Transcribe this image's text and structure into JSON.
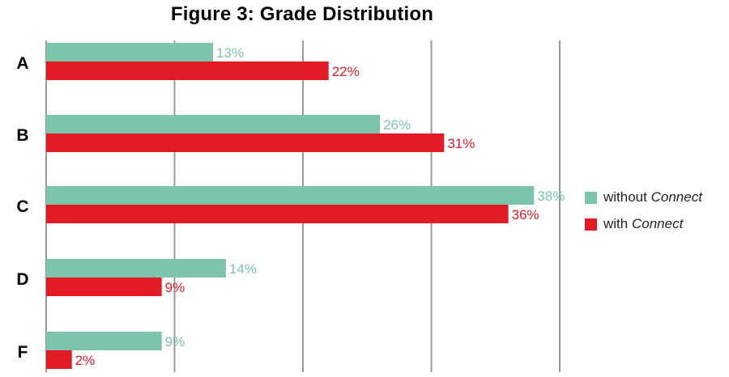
{
  "chart_data": {
    "type": "bar",
    "orientation": "horizontal",
    "title": "Figure 3: Grade Distribution",
    "categories": [
      "A",
      "B",
      "C",
      "D",
      "F"
    ],
    "series": [
      {
        "name": "without Connect",
        "values": [
          13,
          26,
          38,
          14,
          9
        ],
        "color": "#7dc4ad",
        "labels": [
          "13%",
          "26%",
          "38%",
          "14%",
          "9%"
        ]
      },
      {
        "name": "with Connect",
        "values": [
          22,
          31,
          36,
          9,
          2
        ],
        "color": "#e21b25",
        "labels": [
          "22%",
          "31%",
          "36%",
          "9%",
          "2%"
        ]
      }
    ],
    "xlim": [
      0,
      40
    ],
    "grid": true,
    "legend_position": "right"
  },
  "legend": {
    "without_prefix": "without ",
    "with_prefix": "with ",
    "connect_word": "Connect"
  }
}
